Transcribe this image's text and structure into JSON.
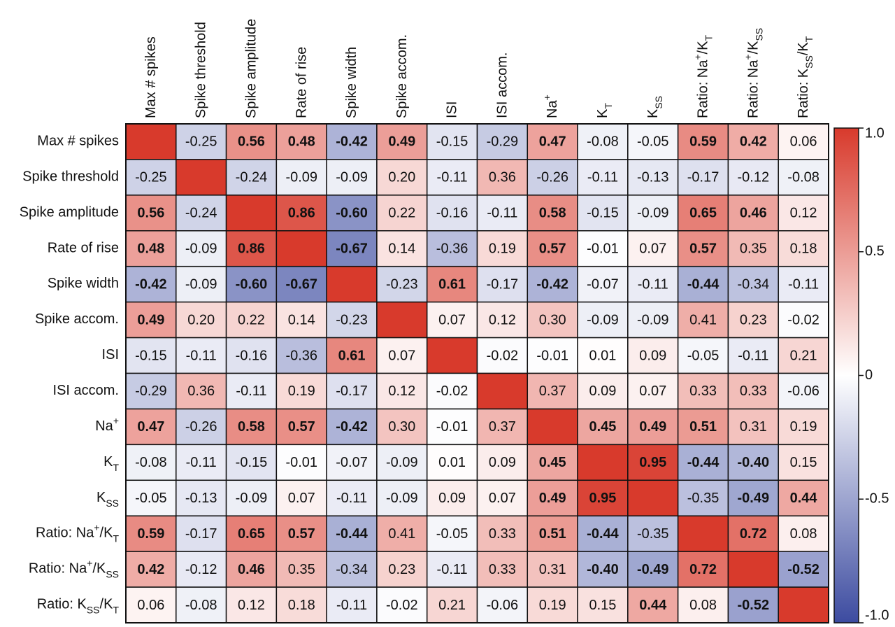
{
  "chart_data": {
    "type": "heatmap",
    "categories": [
      [
        "Max # spikes"
      ],
      [
        "Spike threshold"
      ],
      [
        "Spike amplitude"
      ],
      [
        "Rate of rise"
      ],
      [
        "Spike width"
      ],
      [
        "Spike accom."
      ],
      [
        "ISI"
      ],
      [
        "ISI accom."
      ],
      [
        "Na",
        {
          "sup": "+"
        }
      ],
      [
        "K",
        {
          "sub": "T"
        }
      ],
      [
        "K",
        {
          "sub": "SS"
        }
      ],
      [
        "Ratio: Na",
        {
          "sup": "+"
        },
        "/K",
        {
          "sub": "T"
        }
      ],
      [
        "Ratio: Na",
        {
          "sup": "+"
        },
        "/K",
        {
          "sub": "SS"
        }
      ],
      [
        "Ratio: K",
        {
          "sub": "SS"
        },
        "/K",
        {
          "sub": "T"
        }
      ]
    ],
    "z": [
      [
        1,
        -0.25,
        0.56,
        0.48,
        -0.42,
        0.49,
        -0.15,
        -0.29,
        0.47,
        -0.08,
        -0.05,
        0.59,
        0.42,
        0.06
      ],
      [
        -0.25,
        1,
        -0.24,
        -0.09,
        -0.09,
        0.2,
        -0.11,
        0.36,
        -0.26,
        -0.11,
        -0.13,
        -0.17,
        -0.12,
        -0.08
      ],
      [
        0.56,
        -0.24,
        1,
        0.86,
        -0.6,
        0.22,
        -0.16,
        -0.11,
        0.58,
        -0.15,
        -0.09,
        0.65,
        0.46,
        0.12
      ],
      [
        0.48,
        -0.09,
        0.86,
        1,
        -0.67,
        0.14,
        -0.36,
        0.19,
        0.57,
        -0.01,
        0.07,
        0.57,
        0.35,
        0.18
      ],
      [
        -0.42,
        -0.09,
        -0.6,
        -0.67,
        1,
        -0.23,
        0.61,
        -0.17,
        -0.42,
        -0.07,
        -0.11,
        -0.44,
        -0.34,
        -0.11
      ],
      [
        0.49,
        0.2,
        0.22,
        0.14,
        -0.23,
        1,
        0.07,
        0.12,
        0.3,
        -0.09,
        -0.09,
        0.41,
        0.23,
        -0.02
      ],
      [
        -0.15,
        -0.11,
        -0.16,
        -0.36,
        0.61,
        0.07,
        1,
        -0.02,
        -0.01,
        0.01,
        0.09,
        -0.05,
        -0.11,
        0.21
      ],
      [
        -0.29,
        0.36,
        -0.11,
        0.19,
        -0.17,
        0.12,
        -0.02,
        1,
        0.37,
        0.09,
        0.07,
        0.33,
        0.33,
        -0.06
      ],
      [
        0.47,
        -0.26,
        0.58,
        0.57,
        -0.42,
        0.3,
        -0.01,
        0.37,
        1,
        0.45,
        0.49,
        0.51,
        0.31,
        0.19
      ],
      [
        -0.08,
        -0.11,
        -0.15,
        -0.01,
        -0.07,
        -0.09,
        0.01,
        0.09,
        0.45,
        1,
        0.95,
        -0.44,
        -0.4,
        0.15
      ],
      [
        -0.05,
        -0.13,
        -0.09,
        0.07,
        -0.11,
        -0.09,
        0.09,
        0.07,
        0.49,
        0.95,
        1,
        -0.35,
        -0.49,
        0.44
      ],
      [
        0.59,
        -0.17,
        0.65,
        0.57,
        -0.44,
        0.41,
        -0.05,
        0.33,
        0.51,
        -0.44,
        -0.35,
        1,
        0.72,
        0.08
      ],
      [
        0.42,
        -0.12,
        0.46,
        0.35,
        -0.34,
        0.23,
        -0.11,
        0.33,
        0.31,
        -0.4,
        -0.49,
        0.72,
        1,
        -0.52
      ],
      [
        0.06,
        -0.08,
        0.12,
        0.18,
        -0.11,
        -0.02,
        0.21,
        -0.06,
        0.19,
        0.15,
        0.44,
        0.08,
        -0.52,
        1
      ]
    ],
    "value_labels": [
      [
        null,
        "-0.25",
        "0.56",
        "0.48",
        "-0.42",
        "0.49",
        "-0.15",
        "-0.29",
        "0.47",
        "-0.08",
        "-0.05",
        "0.59",
        "0.42",
        "0.06"
      ],
      [
        "-0.25",
        null,
        "-0.24",
        "-0.09",
        "-0.09",
        "0.20",
        "-0.11",
        "0.36",
        "-0.26",
        "-0.11",
        "-0.13",
        "-0.17",
        "-0.12",
        "-0.08"
      ],
      [
        "0.56",
        "-0.24",
        null,
        "0.86",
        "-0.60",
        "0.22",
        "-0.16",
        "-0.11",
        "0.58",
        "-0.15",
        "-0.09",
        "0.65",
        "0.46",
        "0.12"
      ],
      [
        "0.48",
        "-0.09",
        "0.86",
        null,
        "-0.67",
        "0.14",
        "-0.36",
        "0.19",
        "0.57",
        "-0.01",
        "0.07",
        "0.57",
        "0.35",
        "0.18"
      ],
      [
        "-0.42",
        "-0.09",
        "-0.60",
        "-0.67",
        null,
        "-0.23",
        "0.61",
        "-0.17",
        "-0.42",
        "-0.07",
        "-0.11",
        "-0.44",
        "-0.34",
        "-0.11"
      ],
      [
        "0.49",
        "0.20",
        "0.22",
        "0.14",
        "-0.23",
        null,
        "0.07",
        "0.12",
        "0.30",
        "-0.09",
        "-0.09",
        "0.41",
        "0.23",
        "-0.02"
      ],
      [
        "-0.15",
        "-0.11",
        "-0.16",
        "-0.36",
        "0.61",
        "0.07",
        null,
        "-0.02",
        "-0.01",
        "0.01",
        "0.09",
        "-0.05",
        "-0.11",
        "0.21"
      ],
      [
        "-0.29",
        "0.36",
        "-0.11",
        "0.19",
        "-0.17",
        "0.12",
        "-0.02",
        null,
        "0.37",
        "0.09",
        "0.07",
        "0.33",
        "0.33",
        "-0.06"
      ],
      [
        "0.47",
        "-0.26",
        "0.58",
        "0.57",
        "-0.42",
        "0.30",
        "-0.01",
        "0.37",
        null,
        "0.45",
        "0.49",
        "0.51",
        "0.31",
        "0.19"
      ],
      [
        "-0.08",
        "-0.11",
        "-0.15",
        "-0.01",
        "-0.07",
        "-0.09",
        "0.01",
        "0.09",
        "0.45",
        null,
        "0.95",
        "-0.44",
        "-0.40",
        "0.15"
      ],
      [
        "-0.05",
        "-0.13",
        "-0.09",
        "0.07",
        "-0.11",
        "-0.09",
        "0.09",
        "0.07",
        "0.49",
        "0.95",
        null,
        "-0.35",
        "-0.49",
        "0.44"
      ],
      [
        "0.59",
        "-0.17",
        "0.65",
        "0.57",
        "-0.44",
        "0.41",
        "-0.05",
        "0.33",
        "0.51",
        "-0.44",
        "-0.35",
        null,
        "0.72",
        "0.08"
      ],
      [
        "0.42",
        "-0.12",
        "0.46",
        "0.35",
        "-0.34",
        "0.23",
        "-0.11",
        "0.33",
        "0.31",
        "-0.40",
        "-0.49",
        "0.72",
        null,
        "-0.52"
      ],
      [
        "0.06",
        "-0.08",
        "0.12",
        "0.18",
        "-0.11",
        "-0.02",
        "0.21",
        "-0.06",
        "0.19",
        "0.15",
        "0.44",
        "0.08",
        "-0.52",
        null
      ]
    ],
    "bold": [
      [
        false,
        false,
        true,
        true,
        true,
        true,
        false,
        false,
        true,
        false,
        false,
        true,
        true,
        false
      ],
      [
        false,
        false,
        false,
        false,
        false,
        false,
        false,
        false,
        false,
        false,
        false,
        false,
        false,
        false
      ],
      [
        true,
        false,
        false,
        true,
        true,
        false,
        false,
        false,
        true,
        false,
        false,
        true,
        true,
        false
      ],
      [
        true,
        false,
        true,
        false,
        true,
        false,
        false,
        false,
        true,
        false,
        false,
        true,
        false,
        false
      ],
      [
        true,
        false,
        true,
        true,
        false,
        false,
        true,
        false,
        true,
        false,
        false,
        true,
        false,
        false
      ],
      [
        true,
        false,
        false,
        false,
        false,
        false,
        false,
        false,
        false,
        false,
        false,
        false,
        false,
        false
      ],
      [
        false,
        false,
        false,
        false,
        true,
        false,
        false,
        false,
        false,
        false,
        false,
        false,
        false,
        false
      ],
      [
        false,
        false,
        false,
        false,
        false,
        false,
        false,
        false,
        false,
        false,
        false,
        false,
        false,
        false
      ],
      [
        true,
        false,
        true,
        true,
        true,
        false,
        false,
        false,
        false,
        true,
        true,
        true,
        false,
        false
      ],
      [
        false,
        false,
        false,
        false,
        false,
        false,
        false,
        false,
        true,
        false,
        true,
        true,
        true,
        false
      ],
      [
        false,
        false,
        false,
        false,
        false,
        false,
        false,
        false,
        true,
        true,
        false,
        false,
        true,
        true
      ],
      [
        true,
        false,
        true,
        true,
        true,
        false,
        false,
        false,
        true,
        true,
        false,
        false,
        true,
        false
      ],
      [
        true,
        false,
        true,
        false,
        false,
        false,
        false,
        false,
        false,
        true,
        true,
        true,
        false,
        true
      ],
      [
        false,
        false,
        false,
        false,
        false,
        false,
        false,
        false,
        false,
        false,
        true,
        false,
        true,
        false
      ]
    ],
    "zlim": [
      -1,
      1
    ],
    "zticks": [
      {
        "value": 1,
        "label": "1.0"
      },
      0.5,
      0,
      -0.5,
      {
        "value": -1,
        "label": "-1.0"
      }
    ],
    "colors": {
      "low": "#3c4ba0",
      "mid": "#ffffff",
      "high": "#d83a2c"
    }
  }
}
